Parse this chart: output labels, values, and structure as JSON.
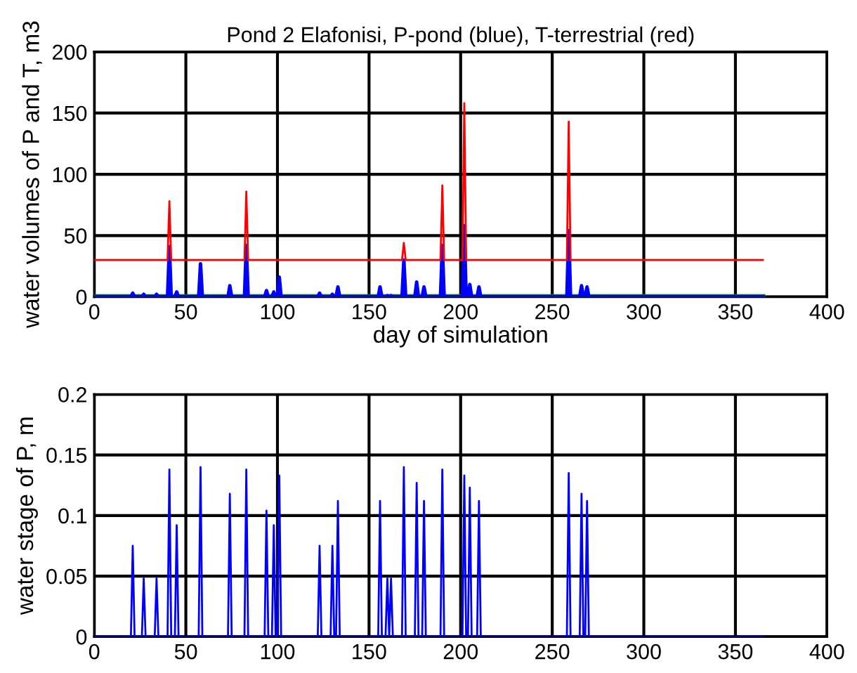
{
  "chart_data": [
    {
      "type": "line",
      "title": "Pond 2 Elafonisi, P-pond (blue), T-terrestrial (red)",
      "xlabel": "day of simulation",
      "ylabel": "water volumes of P and T, m3",
      "xlim": [
        0,
        400
      ],
      "ylim": [
        0,
        200
      ],
      "xticks": [
        0,
        50,
        100,
        150,
        200,
        250,
        300,
        350,
        400
      ],
      "yticks": [
        0,
        50,
        100,
        150,
        200
      ],
      "grid": true,
      "line_style": "solid",
      "series": [
        {
          "color": "#ff0000",
          "x": [
            0,
            40,
            41,
            42,
            82,
            83,
            84,
            168,
            169,
            170,
            189,
            190,
            191,
            201,
            202,
            203,
            258,
            259,
            260,
            365
          ],
          "values": [
            30,
            30,
            78,
            30,
            30,
            86,
            30,
            30,
            44,
            30,
            30,
            91,
            30,
            30,
            158,
            30,
            30,
            143,
            30,
            30
          ]
        },
        {
          "color": "#0000ff",
          "x": [
            0,
            20,
            21,
            22,
            26,
            27,
            28,
            33,
            34,
            35,
            40,
            41,
            42,
            44,
            45,
            46,
            57,
            58,
            59,
            73,
            74,
            75,
            82,
            83,
            84,
            93,
            94,
            95,
            97,
            98,
            99,
            100,
            101,
            102,
            122,
            123,
            124,
            129,
            130,
            131,
            132,
            133,
            134,
            155,
            156,
            157,
            159,
            160,
            161,
            162,
            163,
            168,
            169,
            170,
            175,
            176,
            177,
            179,
            180,
            181,
            189,
            190,
            191,
            201,
            202,
            203,
            204,
            205,
            206,
            209,
            210,
            211,
            258,
            259,
            260,
            265,
            266,
            267,
            268,
            269,
            270,
            365
          ],
          "values": [
            0,
            0,
            3,
            0,
            0,
            2,
            0,
            0,
            2,
            0,
            0,
            41,
            0,
            0,
            4,
            0,
            0,
            27,
            0,
            0,
            9,
            0,
            0,
            42,
            0,
            0,
            5,
            0,
            0,
            4,
            0,
            0,
            16,
            0,
            0,
            3,
            0,
            0,
            2,
            0,
            0,
            8,
            0,
            0,
            8,
            0,
            0,
            1,
            0,
            1,
            0,
            0,
            30,
            0,
            0,
            12,
            0,
            0,
            8,
            0,
            0,
            42,
            0,
            0,
            58,
            0,
            0,
            10,
            0,
            0,
            8,
            0,
            0,
            54,
            0,
            0,
            9,
            0,
            0,
            8,
            0,
            0
          ]
        },
        {
          "color": "#008000",
          "x": [
            0,
            365
          ],
          "values": [
            0,
            0
          ]
        }
      ]
    },
    {
      "type": "line",
      "ylabel": "water stage of P, m",
      "xlim": [
        0,
        400
      ],
      "ylim": [
        0,
        0.2
      ],
      "xticks": [
        0,
        50,
        100,
        150,
        200,
        250,
        300,
        350,
        400
      ],
      "yticks": [
        0,
        0.05,
        0.1,
        0.15,
        0.2
      ],
      "grid": true,
      "line_style": "solid",
      "series": [
        {
          "color": "#0000ff",
          "x": [
            0,
            20,
            21,
            22,
            26,
            27,
            28,
            33,
            34,
            35,
            40,
            41,
            42,
            44,
            45,
            46,
            57,
            58,
            59,
            73,
            74,
            75,
            82,
            83,
            84,
            93,
            94,
            95,
            97,
            98,
            99,
            100,
            101,
            102,
            122,
            123,
            124,
            129,
            130,
            131,
            132,
            133,
            134,
            155,
            156,
            157,
            159,
            160,
            161,
            162,
            163,
            168,
            169,
            170,
            175,
            176,
            177,
            179,
            180,
            181,
            189,
            190,
            191,
            201,
            202,
            203,
            204,
            205,
            206,
            209,
            210,
            211,
            258,
            259,
            260,
            265,
            266,
            267,
            268,
            269,
            270,
            365
          ],
          "values": [
            0,
            0,
            0.075,
            0,
            0,
            0.048,
            0,
            0,
            0.048,
            0,
            0,
            0.138,
            0,
            0,
            0.092,
            0,
            0,
            0.14,
            0,
            0,
            0.118,
            0,
            0,
            0.138,
            0,
            0,
            0.104,
            0,
            0,
            0.092,
            0,
            0,
            0.133,
            0,
            0,
            0.075,
            0,
            0,
            0.075,
            0,
            0,
            0.112,
            0,
            0,
            0.112,
            0,
            0,
            0.048,
            0,
            0.048,
            0,
            0,
            0.14,
            0,
            0,
            0.127,
            0,
            0,
            0.112,
            0,
            0,
            0.138,
            0,
            0,
            0.133,
            0,
            0,
            0.123,
            0,
            0,
            0.112,
            0,
            0,
            0.135,
            0,
            0,
            0.118,
            0,
            0,
            0.112,
            0,
            0
          ]
        }
      ]
    }
  ]
}
